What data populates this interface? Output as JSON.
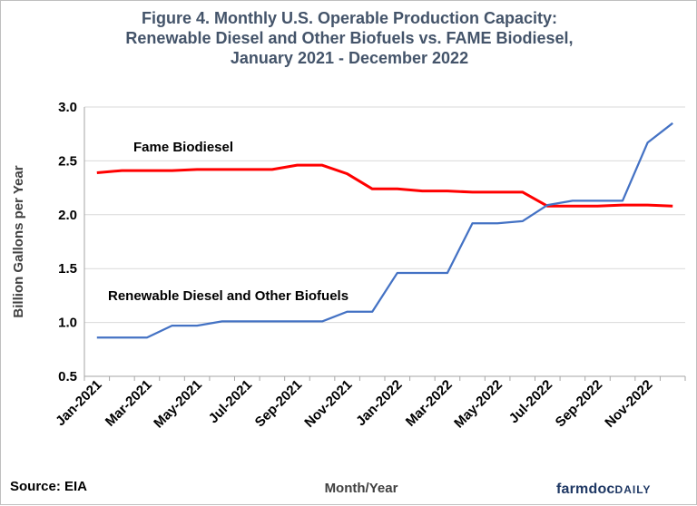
{
  "chart_data": {
    "type": "line",
    "title": [
      "Figure  4. Monthly  U.S. Operable  Production  Capacity:",
      "Renewable  Diesel  and  Other  Biofuels  vs.  FAME  Biodiesel,",
      "January  2021  -  December  2022"
    ],
    "xlabel": "Month/Year",
    "ylabel": "Billion Gallons per Year",
    "ylim": [
      0.5,
      3.0
    ],
    "yticks": [
      "0.5",
      "1.0",
      "1.5",
      "2.0",
      "2.5",
      "3.0"
    ],
    "grid": "horizontal",
    "x": [
      "Jan-2021",
      "Feb-2021",
      "Mar-2021",
      "Apr-2021",
      "May-2021",
      "Jun-2021",
      "Jul-2021",
      "Aug-2021",
      "Sep-2021",
      "Oct-2021",
      "Nov-2021",
      "Dec-2021",
      "Jan-2022",
      "Feb-2022",
      "Mar-2022",
      "Apr-2022",
      "May-2022",
      "Jun-2022",
      "Jul-2022",
      "Aug-2022",
      "Sep-2022",
      "Oct-2022",
      "Nov-2022",
      "Dec-2022"
    ],
    "xtick_labels": [
      "Jan-2021",
      "Mar-2021",
      "May-2021",
      "Jul-2021",
      "Sep-2021",
      "Nov-2021",
      "Jan-2022",
      "Mar-2022",
      "May-2022",
      "Jul-2022",
      "Sep-2022",
      "Nov-2022"
    ],
    "series": [
      {
        "name": "Fame Biodiesel",
        "color": "#ff0000",
        "values": [
          2.39,
          2.41,
          2.41,
          2.41,
          2.42,
          2.42,
          2.42,
          2.42,
          2.46,
          2.46,
          2.38,
          2.24,
          2.24,
          2.22,
          2.22,
          2.21,
          2.21,
          2.21,
          2.08,
          2.08,
          2.08,
          2.09,
          2.09,
          2.08
        ]
      },
      {
        "name": "Renewable Diesel and Other Biofuels",
        "color": "#4472c4",
        "values": [
          0.86,
          0.86,
          0.86,
          0.97,
          0.97,
          1.01,
          1.01,
          1.01,
          1.01,
          1.01,
          1.1,
          1.1,
          1.46,
          1.46,
          1.46,
          1.92,
          1.92,
          1.94,
          2.09,
          2.13,
          2.13,
          2.13,
          2.67,
          2.85
        ]
      }
    ]
  },
  "footer": {
    "source": "Source: EIA",
    "logo_main": "farmdoc",
    "logo_sub": "DAILY"
  }
}
